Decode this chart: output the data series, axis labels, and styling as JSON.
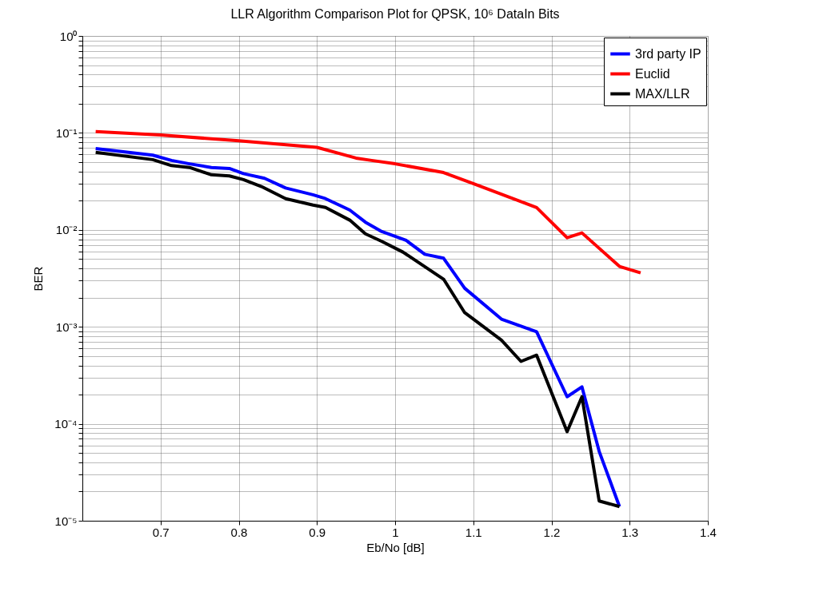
{
  "chart_data": {
    "type": "line",
    "title": "LLR Algorithm Comparison Plot for QPSK, 10⁶ DataIn Bits",
    "xlabel": "Eb/No [dB]",
    "ylabel": "BER",
    "xlim": [
      0.6,
      1.4
    ],
    "xticks": [
      0.7,
      0.8,
      0.9,
      1,
      1.1,
      1.2,
      1.3,
      1.4
    ],
    "ylim": [
      1e-05,
      1
    ],
    "log": true,
    "grid": true,
    "legend": "top right",
    "line_style": "solid",
    "yticks": [
      {
        "value": 1e-05,
        "label": "10⁻⁵"
      },
      {
        "value": 2e-05,
        "label": null
      },
      {
        "value": 3e-05,
        "label": null
      },
      {
        "value": 4e-05,
        "label": null
      },
      {
        "value": 5e-05,
        "label": null
      },
      {
        "value": 6e-05,
        "label": null
      },
      {
        "value": 7e-05,
        "label": null
      },
      {
        "value": 8e-05,
        "label": null
      },
      {
        "value": 9e-05,
        "label": null
      },
      {
        "value": 0.0001,
        "label": "10⁻⁴"
      },
      {
        "value": 0.0002,
        "label": null
      },
      {
        "value": 0.0003,
        "label": null
      },
      {
        "value": 0.0004,
        "label": null
      },
      {
        "value": 0.0005,
        "label": null
      },
      {
        "value": 0.0006,
        "label": null
      },
      {
        "value": 0.0007,
        "label": null
      },
      {
        "value": 0.0008,
        "label": null
      },
      {
        "value": 0.0009,
        "label": null
      },
      {
        "value": 0.001,
        "label": "10⁻³"
      },
      {
        "value": 0.002,
        "label": null
      },
      {
        "value": 0.003,
        "label": null
      },
      {
        "value": 0.004,
        "label": null
      },
      {
        "value": 0.005,
        "label": null
      },
      {
        "value": 0.006,
        "label": null
      },
      {
        "value": 0.007,
        "label": null
      },
      {
        "value": 0.008,
        "label": null
      },
      {
        "value": 0.009,
        "label": null
      },
      {
        "value": 0.01,
        "label": "10⁻²"
      },
      {
        "value": 0.02,
        "label": null
      },
      {
        "value": 0.03,
        "label": null
      },
      {
        "value": 0.04,
        "label": null
      },
      {
        "value": 0.05,
        "label": null
      },
      {
        "value": 0.06,
        "label": null
      },
      {
        "value": 0.07,
        "label": null
      },
      {
        "value": 0.08,
        "label": null
      },
      {
        "value": 0.09,
        "label": null
      },
      {
        "value": 0.1,
        "label": "10⁻¹"
      },
      {
        "value": 0.2,
        "label": null
      },
      {
        "value": 0.3,
        "label": null
      },
      {
        "value": 0.4,
        "label": null
      },
      {
        "value": 0.5,
        "label": null
      },
      {
        "value": 0.6,
        "label": null
      },
      {
        "value": 0.7,
        "label": null
      },
      {
        "value": 0.8,
        "label": null
      },
      {
        "value": 0.9,
        "label": null
      },
      {
        "value": 1,
        "label": "10⁰"
      }
    ],
    "series": [
      {
        "name": "3rd party IP",
        "color": "#0000ff",
        "x": [
          0.617,
          0.69,
          0.714,
          0.737,
          0.765,
          0.788,
          0.806,
          0.833,
          0.86,
          0.895,
          0.911,
          0.942,
          0.962,
          0.983,
          1.014,
          1.038,
          1.062,
          1.089,
          1.136,
          1.181,
          1.22,
          1.239,
          1.261,
          1.287
        ],
        "values": [
          0.069,
          0.059,
          0.052,
          0.048,
          0.044,
          0.043,
          0.038,
          0.034,
          0.027,
          0.023,
          0.021,
          0.016,
          0.012,
          0.0096,
          0.0078,
          0.0056,
          0.0051,
          0.0025,
          0.0012,
          0.00089,
          0.00019,
          0.00024,
          5.2e-05,
          1.4e-05
        ]
      },
      {
        "name": "Euclid",
        "color": "#ff0000",
        "x": [
          0.617,
          0.7,
          0.8,
          0.9,
          0.95,
          0.97,
          1.0,
          1.062,
          1.1,
          1.181,
          1.22,
          1.239,
          1.287,
          1.314
        ],
        "values": [
          0.103,
          0.095,
          0.083,
          0.071,
          0.055,
          0.052,
          0.048,
          0.039,
          0.03,
          0.017,
          0.0083,
          0.0093,
          0.0042,
          0.0036
        ]
      },
      {
        "name": "MAX/LLR",
        "color": "#000000",
        "x": [
          0.617,
          0.69,
          0.714,
          0.737,
          0.765,
          0.788,
          0.806,
          0.829,
          0.86,
          0.895,
          0.911,
          0.942,
          0.962,
          0.983,
          1.01,
          1.062,
          1.089,
          1.136,
          1.161,
          1.181,
          1.22,
          1.239,
          1.261,
          1.287
        ],
        "values": [
          0.063,
          0.053,
          0.046,
          0.044,
          0.037,
          0.036,
          0.033,
          0.028,
          0.021,
          0.018,
          0.017,
          0.0126,
          0.0091,
          0.0076,
          0.0059,
          0.0031,
          0.0014,
          0.00073,
          0.00044,
          0.00051,
          8.3e-05,
          0.00019,
          1.6e-05,
          1.4e-05
        ]
      }
    ]
  }
}
